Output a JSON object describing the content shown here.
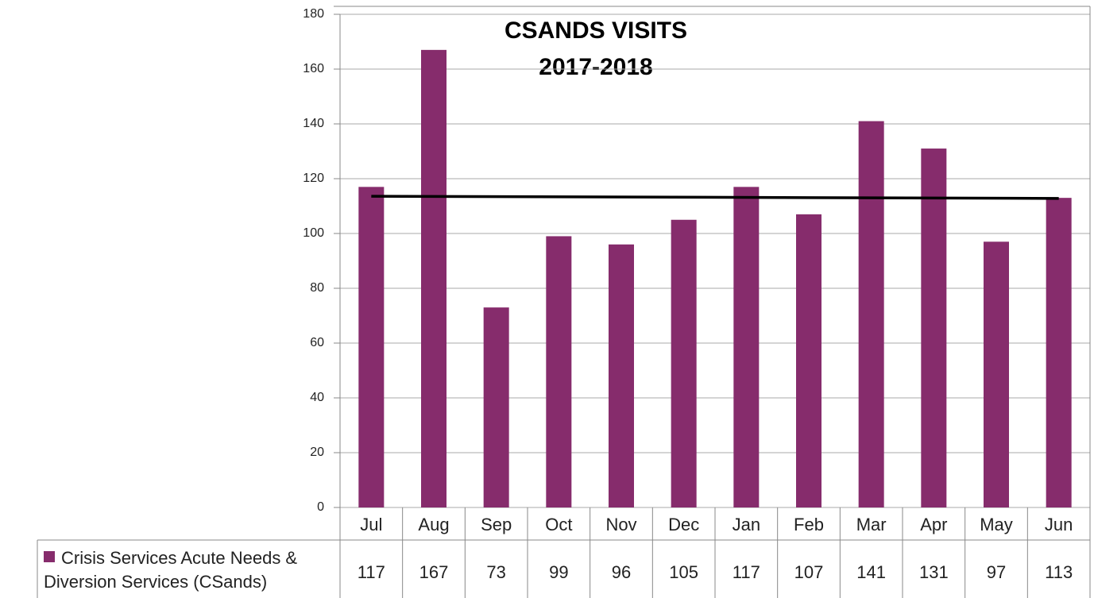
{
  "chart_data": {
    "type": "bar",
    "title": "CSANDS VISITS",
    "subtitle": "2017-2018",
    "categories": [
      "Jul",
      "Aug",
      "Sep",
      "Oct",
      "Nov",
      "Dec",
      "Jan",
      "Feb",
      "Mar",
      "Apr",
      "May",
      "Jun"
    ],
    "series": [
      {
        "name": "Crisis Services Acute Needs & Diversion Services (CSands)",
        "color": "#862c6c",
        "values": [
          117,
          167,
          73,
          99,
          96,
          105,
          117,
          107,
          141,
          131,
          97,
          113
        ]
      }
    ],
    "trendline": {
      "color": "#000000",
      "values": [
        113.6,
        112.8
      ]
    },
    "ylim": [
      0,
      180
    ],
    "yticks": [
      0,
      20,
      40,
      60,
      80,
      100,
      120,
      140,
      160,
      180
    ],
    "grid": true,
    "legend": "bottom",
    "data_table": true
  }
}
